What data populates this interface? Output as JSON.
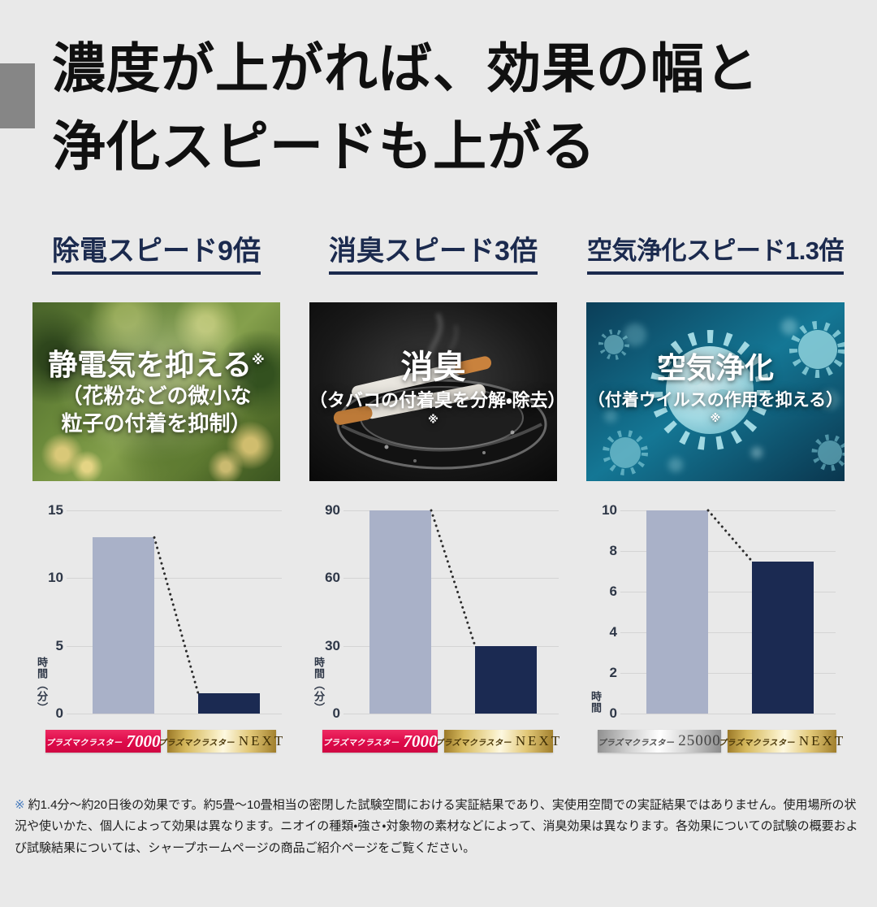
{
  "page": {
    "title_line1": "濃度が上がれば、効果の幅と",
    "title_line2": "浄化スピードも上がる"
  },
  "columns": [
    {
      "header": "除電スピード9倍",
      "image": {
        "description": "cedar-branches-pollen-photo",
        "caption_main": "静電気を抑える",
        "caption_note": "※",
        "caption_sub": [
          "（花粉などの微小な",
          "粒子の付着を抑制）"
        ]
      },
      "badges": [
        {
          "brand": "プラズマクラスター",
          "model": "7000"
        },
        {
          "brand": "プラズマクラスター",
          "model": "NEXT"
        }
      ]
    },
    {
      "header": "消臭スピード3倍",
      "image": {
        "description": "cigarettes-ashtray-photo",
        "caption_main": "消臭",
        "caption_note": "※",
        "caption_sub": [
          "（タバコの付着臭を分解・除去）"
        ]
      },
      "badges": [
        {
          "brand": "プラズマクラスター",
          "model": "7000"
        },
        {
          "brand": "プラズマクラスター",
          "model": "NEXT"
        }
      ]
    },
    {
      "header": "空気浄化スピード1.3倍",
      "image": {
        "description": "virus-illustration",
        "caption_main": "空気浄化",
        "caption_note": "※",
        "caption_sub": [
          "（付着ウイルスの作用を抑える）"
        ]
      },
      "badges": [
        {
          "brand": "プラズマクラスター",
          "model": "25000"
        },
        {
          "brand": "プラズマクラスター",
          "model": "NEXT"
        }
      ]
    }
  ],
  "chart_data": [
    {
      "type": "bar",
      "title": "除電スピード9倍",
      "categories": [
        "プラズマクラスター7000",
        "プラズマクラスターNEXT"
      ],
      "values": [
        13,
        1.5
      ],
      "ylabel": "時間（分）",
      "xlabel": "",
      "yticks": [
        15,
        10,
        5,
        0
      ],
      "ylim": [
        0,
        15
      ],
      "bar_colors": [
        "#a9b1c8",
        "#1b2a52"
      ],
      "grid": true,
      "legend_position": "below-as-badges",
      "annotation": "dotted decline line from bar1 top to bar2 top"
    },
    {
      "type": "bar",
      "title": "消臭スピード3倍",
      "categories": [
        "プラズマクラスター7000",
        "プラズマクラスターNEXT"
      ],
      "values": [
        90,
        30
      ],
      "ylabel": "時間（分）",
      "xlabel": "",
      "yticks": [
        90,
        60,
        30,
        0
      ],
      "ylim": [
        0,
        90
      ],
      "bar_colors": [
        "#a9b1c8",
        "#1b2a52"
      ],
      "grid": true,
      "legend_position": "below-as-badges",
      "annotation": "dotted decline line from bar1 top to bar2 top"
    },
    {
      "type": "bar",
      "title": "空気浄化スピード1.3倍",
      "categories": [
        "プラズマクラスター25000",
        "プラズマクラスターNEXT"
      ],
      "values": [
        10,
        7.5
      ],
      "ylabel": "時間",
      "xlabel": "",
      "yticks": [
        10,
        8,
        6,
        4,
        2,
        0
      ],
      "ylim": [
        0,
        10
      ],
      "bar_colors": [
        "#a9b1c8",
        "#1b2a52"
      ],
      "grid": true,
      "legend_position": "below-as-badges",
      "annotation": "dotted decline line from bar1 top to bar2 top"
    }
  ],
  "footnote": {
    "mark": "※",
    "text": "約1.4分～約20日後の効果です。約5畳～10畳相当の密閉した試験空間における実証結果であり、実使用空間での実証結果ではありません。使用場所の状況や使いかた、個人によって効果は異なります。ニオイの種類・強さ・対象物の素材などによって、消臭効果は異なります。各効果についての試験の概要および試験結果については、シャープホームページの商品ご紹介ページをご覧ください。"
  },
  "colors": {
    "background": "#e9e9e9",
    "headline_navy": "#1b2a4e",
    "bar_light": "#a9b1c8",
    "bar_dark": "#1b2a52",
    "badge_pink": "#e3134f",
    "badge_gold": "#d7b862",
    "badge_silver": "#c9c9c9",
    "footnote_mark_blue": "#4a7dbe",
    "accent_square_gray": "#868686"
  }
}
